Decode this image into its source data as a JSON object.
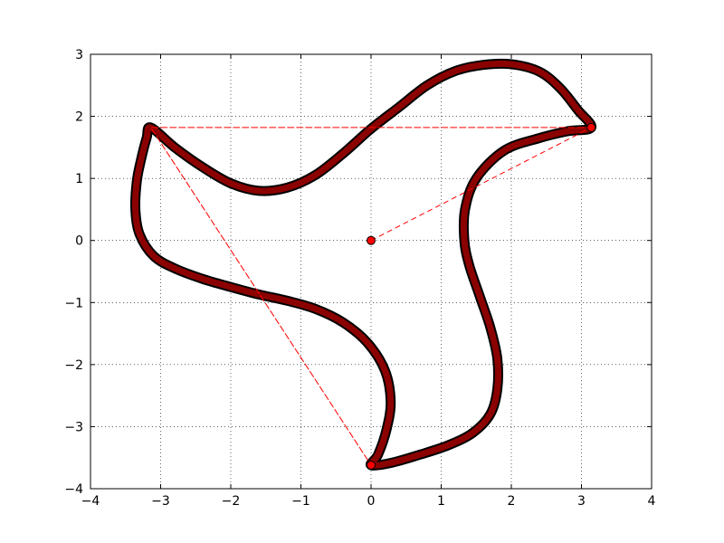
{
  "chart_data": {
    "type": "line",
    "title": "",
    "xlabel": "",
    "ylabel": "",
    "xlim": [
      -4,
      4
    ],
    "ylim": [
      -4,
      3
    ],
    "xticks": [
      -4,
      -3,
      -2,
      -1,
      0,
      1,
      2,
      3,
      4
    ],
    "yticks": [
      -4,
      -3,
      -2,
      -1,
      0,
      1,
      2,
      3
    ],
    "grid": true,
    "colors": {
      "curve_edge": "#000000",
      "curve_fill": "#8b0000",
      "dashed": "#ff0000",
      "marker": "#ff0000"
    },
    "series": [
      {
        "style": "thick-dark-red-curve",
        "closed": true,
        "points": [
          [
            3.14,
            1.82
          ],
          [
            2.95,
            2.1
          ],
          [
            2.7,
            2.45
          ],
          [
            2.4,
            2.72
          ],
          [
            2.0,
            2.84
          ],
          [
            1.6,
            2.83
          ],
          [
            1.2,
            2.73
          ],
          [
            0.8,
            2.5
          ],
          [
            0.4,
            2.15
          ],
          [
            0.0,
            1.8
          ],
          [
            -0.4,
            1.4
          ],
          [
            -0.8,
            1.05
          ],
          [
            -1.2,
            0.85
          ],
          [
            -1.6,
            0.8
          ],
          [
            -2.0,
            0.92
          ],
          [
            -2.4,
            1.18
          ],
          [
            -2.8,
            1.5
          ],
          [
            -3.14,
            1.82
          ],
          [
            -3.2,
            1.65
          ],
          [
            -3.28,
            1.3
          ],
          [
            -3.34,
            0.95
          ],
          [
            -3.36,
            0.5
          ],
          [
            -3.3,
            0.1
          ],
          [
            -3.1,
            -0.25
          ],
          [
            -2.8,
            -0.45
          ],
          [
            -2.4,
            -0.62
          ],
          [
            -2.0,
            -0.75
          ],
          [
            -1.6,
            -0.87
          ],
          [
            -1.2,
            -0.97
          ],
          [
            -0.8,
            -1.1
          ],
          [
            -0.4,
            -1.32
          ],
          [
            -0.05,
            -1.65
          ],
          [
            0.2,
            -2.1
          ],
          [
            0.28,
            -2.6
          ],
          [
            0.22,
            -3.05
          ],
          [
            0.1,
            -3.45
          ],
          [
            0.0,
            -3.62
          ],
          [
            0.3,
            -3.58
          ],
          [
            0.7,
            -3.45
          ],
          [
            1.1,
            -3.3
          ],
          [
            1.45,
            -3.1
          ],
          [
            1.7,
            -2.8
          ],
          [
            1.8,
            -2.4
          ],
          [
            1.8,
            -1.9
          ],
          [
            1.7,
            -1.4
          ],
          [
            1.55,
            -0.9
          ],
          [
            1.4,
            -0.4
          ],
          [
            1.33,
            0.0
          ],
          [
            1.34,
            0.5
          ],
          [
            1.5,
            1.0
          ],
          [
            1.9,
            1.45
          ],
          [
            2.4,
            1.65
          ],
          [
            2.8,
            1.76
          ],
          [
            3.14,
            1.82
          ]
        ]
      },
      {
        "style": "red-dashed",
        "closed": true,
        "points": [
          [
            3.14,
            1.82
          ],
          [
            -3.14,
            1.82
          ],
          [
            0.0,
            -3.62
          ],
          [
            -3.14,
            1.82
          ]
        ]
      },
      {
        "style": "red-dashed",
        "closed": false,
        "points": [
          [
            0.0,
            0.0
          ],
          [
            3.14,
            1.82
          ]
        ]
      },
      {
        "style": "red-dot-markers",
        "points": [
          [
            0.0,
            0.0
          ],
          [
            3.14,
            1.82
          ],
          [
            0.0,
            -3.62
          ]
        ]
      }
    ]
  }
}
